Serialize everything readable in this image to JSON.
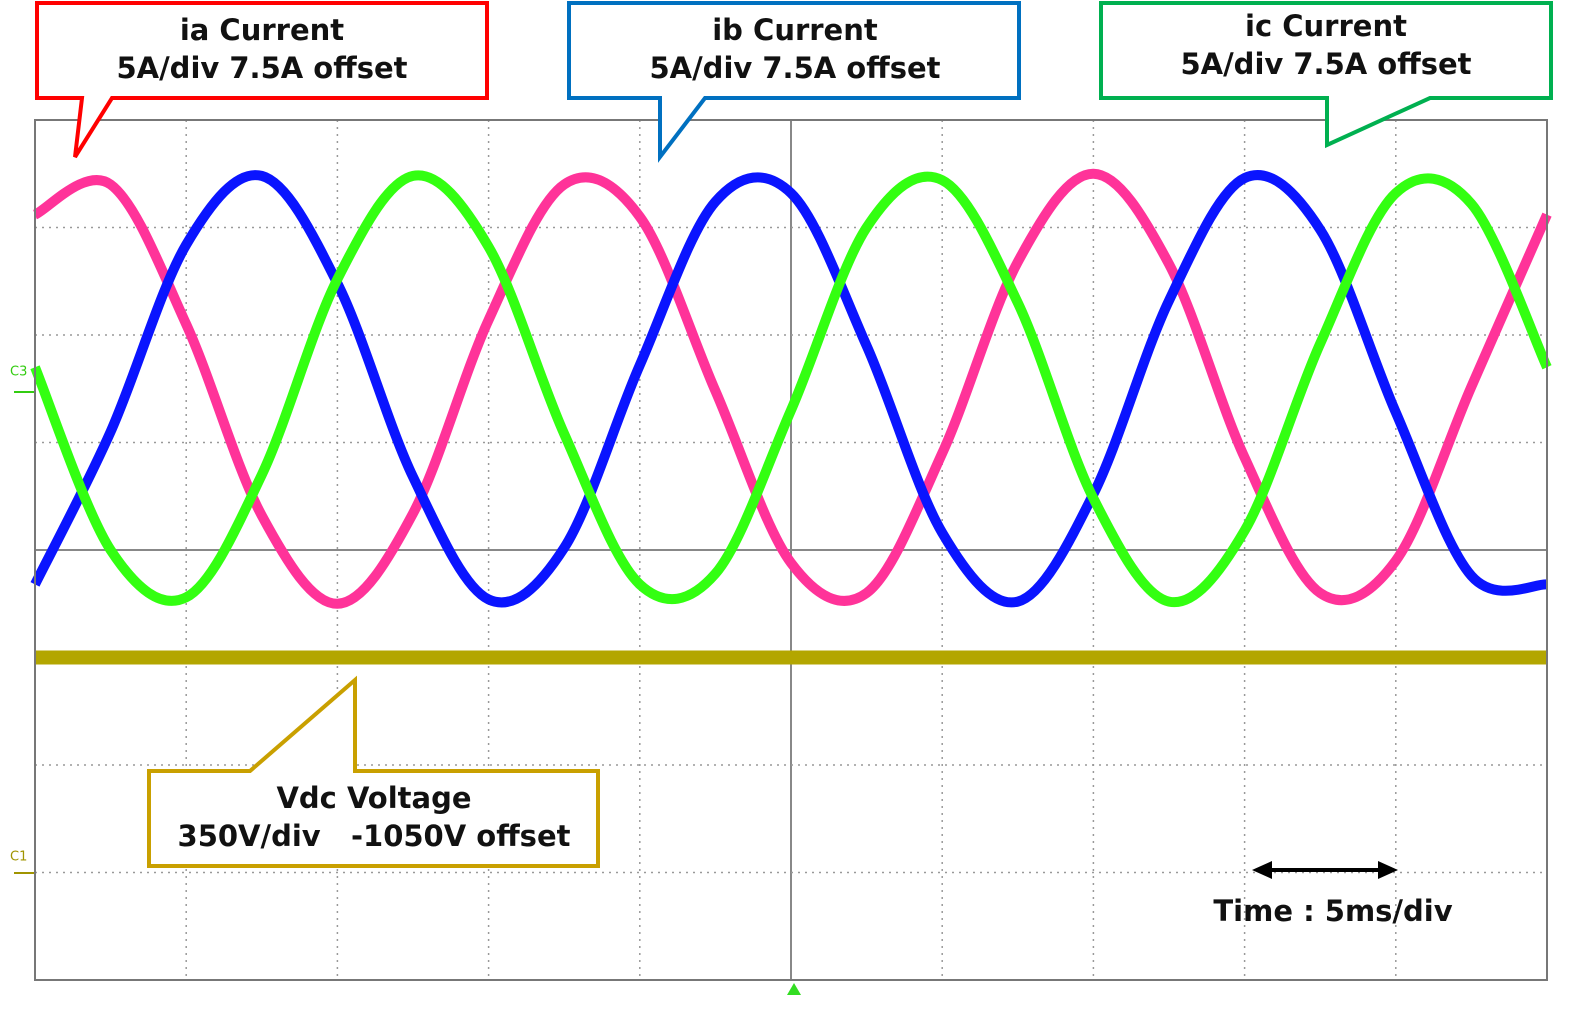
{
  "chart_data": {
    "type": "line",
    "x": [
      0,
      2.5,
      5,
      7.5,
      10,
      12.5,
      15,
      17.5,
      20,
      22.5,
      25,
      27.5,
      30,
      32.5,
      35,
      37.5,
      40,
      42.5,
      45,
      47.5,
      50
    ],
    "xlim": [
      0,
      50
    ],
    "ylim": [
      -27.5,
      12.5
    ],
    "y2lim": [
      -350,
      2450
    ],
    "series": [
      {
        "name": "ia Current",
        "scale": "5A/div 7.5A offset",
        "color": "#ff3399",
        "border": "#ff0000",
        "values": [
          8.1,
          9.5,
          3.0,
          -5.9,
          -10.0,
          -5.8,
          3.2,
          9.5,
          8.0,
          -0.1,
          -8.1,
          -9.5,
          -3.0,
          5.9,
          10.0,
          5.8,
          -3.2,
          -9.5,
          -8.0,
          0.1,
          8.1
        ]
      },
      {
        "name": "ib Current",
        "scale": "5A/div 7.5A offset",
        "color": "#0a14ff",
        "border": "#0070c0",
        "values": [
          -9.1,
          -2.0,
          6.7,
          9.9,
          4.9,
          -4.1,
          -9.8,
          -7.4,
          1.1,
          8.7,
          9.1,
          2.0,
          -6.7,
          -9.9,
          -4.9,
          4.1,
          9.8,
          7.4,
          -1.1,
          -8.7,
          -9.1
        ]
      },
      {
        "name": "ic Current",
        "scale": "5A/div 7.5A offset",
        "color": "#33ff11",
        "border": "#00b050",
        "values": [
          1.0,
          -7.5,
          -9.7,
          -4.0,
          5.1,
          9.9,
          6.6,
          -2.1,
          -9.1,
          -8.6,
          -1.0,
          7.5,
          9.7,
          4.0,
          -5.1,
          -9.9,
          -6.6,
          2.1,
          9.1,
          8.6,
          1.0
        ]
      },
      {
        "name": "Vdc Voltage",
        "scale": "350V/div   -1050V offset",
        "color": "#b3a600",
        "border": "#c9a000",
        "axis": "y2",
        "values": [
          700,
          700,
          700,
          700,
          700,
          700,
          700,
          700,
          700,
          700,
          700,
          700,
          700,
          700,
          700,
          700,
          700,
          700,
          700,
          700,
          700
        ]
      }
    ],
    "channel_markers": [
      "C3",
      "C1"
    ],
    "time_label": "Time : 5ms/div"
  }
}
